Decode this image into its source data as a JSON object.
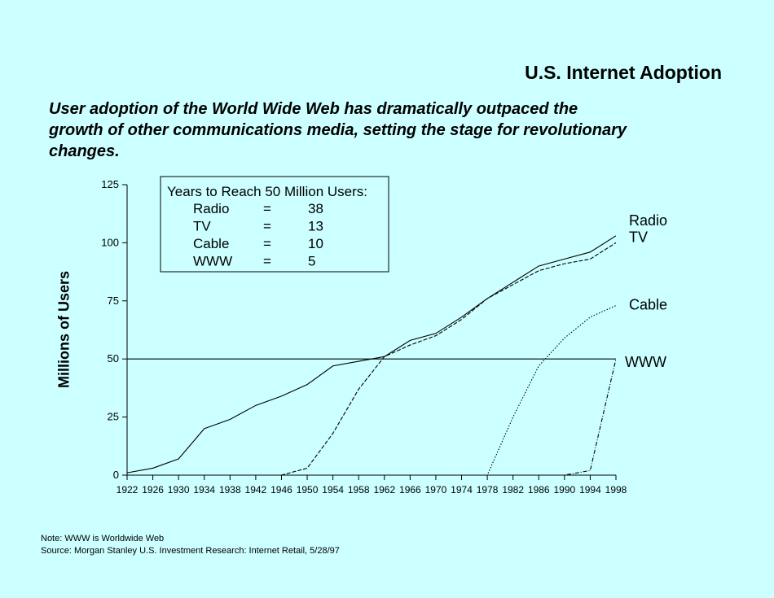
{
  "page": {
    "title": "U.S. Internet Adoption",
    "subtitle": "User adoption of the World Wide Web has dramatically outpaced the growth of other communications media, setting the stage for revolutionary changes.",
    "note": "Note:   WWW is Worldwide Web",
    "source": "Source: Morgan Stanley U.S. Investment Research:  Internet Retail, 5/28/97"
  },
  "chart_data": {
    "type": "line",
    "title": "U.S. Internet Adoption",
    "xlabel": "",
    "ylabel": "Millions of Users",
    "xlim": [
      1922,
      1998
    ],
    "ylim": [
      0,
      125
    ],
    "x_ticks": [
      1922,
      1926,
      1930,
      1934,
      1938,
      1942,
      1946,
      1950,
      1954,
      1958,
      1962,
      1966,
      1970,
      1974,
      1978,
      1982,
      1986,
      1990,
      1994,
      1998
    ],
    "y_ticks": [
      0,
      25,
      50,
      75,
      100,
      125
    ],
    "grid": false,
    "reference_line": {
      "y": 50
    },
    "series": [
      {
        "name": "Radio",
        "style": "solid",
        "x": [
          1922,
          1926,
          1930,
          1934,
          1938,
          1942,
          1946,
          1950,
          1954,
          1958,
          1962,
          1966,
          1970,
          1974,
          1978,
          1982,
          1986,
          1990,
          1994,
          1998
        ],
        "y": [
          1,
          3,
          7,
          20,
          24,
          30,
          34,
          39,
          47,
          49,
          51,
          58,
          61,
          68,
          76,
          83,
          90,
          93,
          96,
          103
        ]
      },
      {
        "name": "TV",
        "style": "dashed",
        "x": [
          1922,
          1946,
          1950,
          1954,
          1958,
          1962,
          1966,
          1970,
          1974,
          1978,
          1982,
          1986,
          1990,
          1994,
          1998
        ],
        "y": [
          0,
          0,
          3,
          18,
          37,
          51,
          56,
          60,
          67,
          76,
          82,
          88,
          91,
          93,
          100
        ]
      },
      {
        "name": "Cable",
        "style": "dotted",
        "x": [
          1922,
          1978,
          1982,
          1986,
          1990,
          1994,
          1998
        ],
        "y": [
          0,
          0,
          25,
          47,
          59,
          68,
          73
        ]
      },
      {
        "name": "WWW",
        "style": "dashdot",
        "x": [
          1922,
          1990,
          1994,
          1998
        ],
        "y": [
          0,
          0,
          2,
          50
        ]
      }
    ],
    "legend_box": {
      "header": "Years to Reach 50 Million Users:",
      "rows": [
        {
          "medium": "Radio",
          "eq": "=",
          "years": "38"
        },
        {
          "medium": "TV",
          "eq": "=",
          "years": "13"
        },
        {
          "medium": "Cable",
          "eq": "=",
          "years": "10"
        },
        {
          "medium": "WWW",
          "eq": "=",
          "years": "5"
        }
      ]
    }
  }
}
